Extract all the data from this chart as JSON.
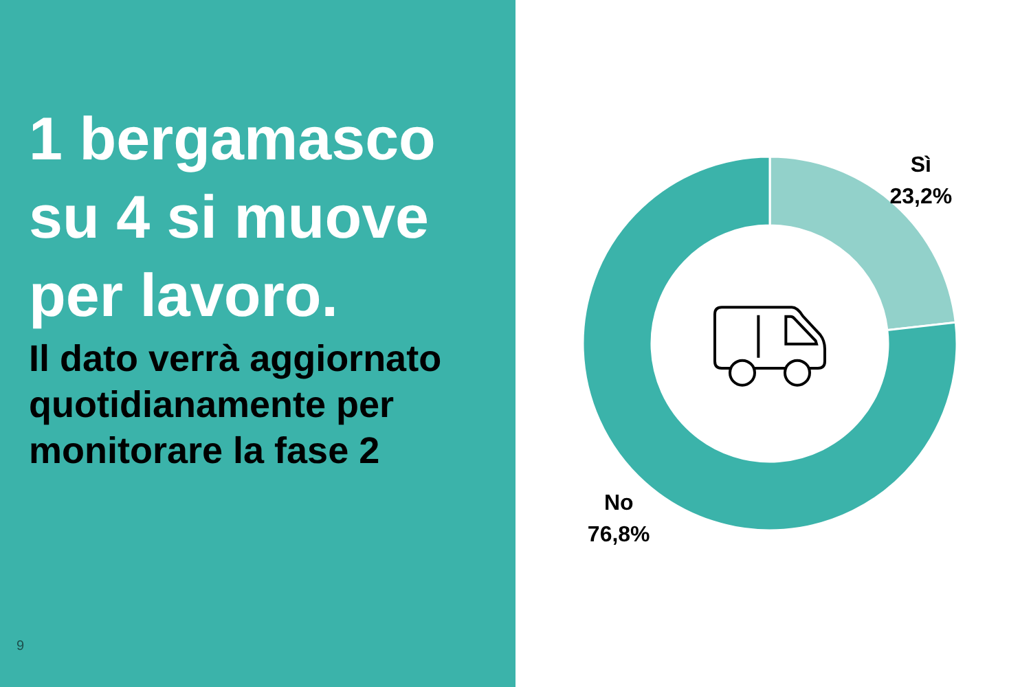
{
  "chart_data": {
    "type": "donut",
    "title": "1 bergamasco su 4 si muove per lavoro.",
    "subtitle": "Il dato verrà aggiornato quotidianamente per monitorare la fase 2",
    "categories": [
      "Sì",
      "No"
    ],
    "values": [
      23.2,
      76.8
    ],
    "colors": [
      "#92d1ca",
      "#3bb3aa"
    ],
    "value_labels": [
      "23,2%",
      "76,8%"
    ],
    "annotations": [
      "9"
    ]
  }
}
